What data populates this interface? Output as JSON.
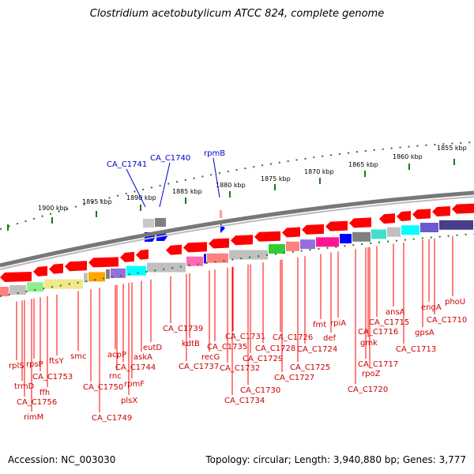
{
  "title": "Clostridium acetobutylicum ATCC 824, complete genome",
  "footer": {
    "accession": "Accession: NC_003030",
    "summary": "Topology: circular; Length: 3,940,880 bp; Genes: 3,777"
  },
  "colors": {
    "backbone": "#888888",
    "gene_red": "#ff0000",
    "label_red": "#cc0000",
    "label_blue": "#0000cc",
    "tick_green": "#1a7a1a"
  },
  "scale_labels": [
    "1900 kbp",
    "1895 kbp",
    "1890 kbp",
    "1885 kbp",
    "1880 kbp",
    "1875 kbp",
    "1870 kbp",
    "1865 kbp",
    "1860 kbp",
    "1855 kbp"
  ],
  "top_labels": [
    "CA_C1741",
    "CA_C1740",
    "rpmB"
  ],
  "bottom_labels": [
    "rplS",
    "trmD",
    "rpsP",
    "CA_C1756",
    "ffh",
    "rimM",
    "CA_C1753",
    "ftsY",
    "smc",
    "CA_C1750",
    "CA_C1749",
    "rnc",
    "acpP",
    "plsX",
    "rpmF",
    "CA_C1744",
    "askA",
    "eutD",
    "CA_C1739",
    "kdtB",
    "CA_C1737",
    "recG",
    "CA_C1735",
    "CA_C1734",
    "CA_C1732",
    "CA_C1731",
    "CA_C1730",
    "CA_C1729",
    "CA_C1728",
    "CA_C1727",
    "CA_C1726",
    "CA_C1725",
    "CA_C1724",
    "def",
    "fmt",
    "rpiA",
    "CA_C1720",
    "rpoZ",
    "CA_C1717",
    "gmk",
    "CA_C1716",
    "CA_C1715",
    "ansA",
    "gpsA",
    "CA_C1713",
    "engA",
    "CA_C1710",
    "phoU"
  ]
}
